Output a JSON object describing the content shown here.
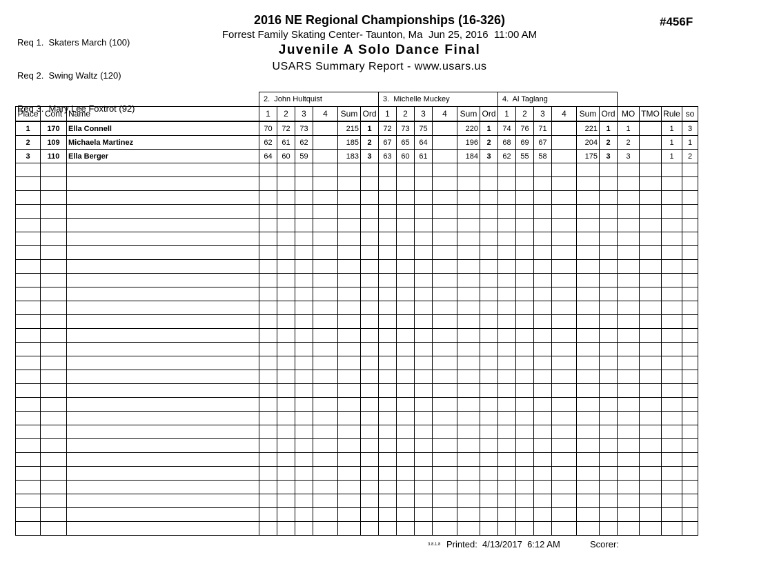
{
  "header": {
    "requirements": [
      "Req 1.  Skaters March (100)",
      "Req 2.  Swing Waltz (120)",
      "Req 3.  Mary Lee Foxtrot (92)"
    ],
    "title": "2016 NE Regional Championships (16-326)",
    "venue_line": "Forrest Family Skating Center- Taunton, Ma  Jun 25, 2016  11:00 AM",
    "event_title": "Juvenile A Solo Dance Final",
    "report_line": "USARS Summary Report - www.usars.us",
    "event_number": "#456F"
  },
  "table": {
    "judges": [
      "2.  John Hultquist",
      "3.  Michelle Muckey",
      "4.  Al Taglang"
    ],
    "left_headers": [
      "Place",
      "Cont",
      "Name"
    ],
    "judge_headers": [
      "1",
      "2",
      "3",
      "4",
      "Sum",
      "Ord"
    ],
    "right_headers": [
      "MO",
      "TMO",
      "Rule",
      "so"
    ],
    "rows": [
      {
        "place": "1",
        "cont": "170",
        "name": "Ella Connell",
        "judges": [
          {
            "marks": [
              "70",
              "72",
              "73",
              ""
            ],
            "sum": "215",
            "ord": "1"
          },
          {
            "marks": [
              "72",
              "73",
              "75",
              ""
            ],
            "sum": "220",
            "ord": "1"
          },
          {
            "marks": [
              "74",
              "76",
              "71",
              ""
            ],
            "sum": "221",
            "ord": "1"
          }
        ],
        "mo": "1",
        "tmo": "",
        "rule": "1",
        "so": "3"
      },
      {
        "place": "2",
        "cont": "109",
        "name": "Michaela Martinez",
        "judges": [
          {
            "marks": [
              "62",
              "61",
              "62",
              ""
            ],
            "sum": "185",
            "ord": "2"
          },
          {
            "marks": [
              "67",
              "65",
              "64",
              ""
            ],
            "sum": "196",
            "ord": "2"
          },
          {
            "marks": [
              "68",
              "69",
              "67",
              ""
            ],
            "sum": "204",
            "ord": "2"
          }
        ],
        "mo": "2",
        "tmo": "",
        "rule": "1",
        "so": "1"
      },
      {
        "place": "3",
        "cont": "110",
        "name": "Ella Berger",
        "judges": [
          {
            "marks": [
              "64",
              "60",
              "59",
              ""
            ],
            "sum": "183",
            "ord": "3"
          },
          {
            "marks": [
              "63",
              "60",
              "61",
              ""
            ],
            "sum": "184",
            "ord": "3"
          },
          {
            "marks": [
              "62",
              "55",
              "58",
              ""
            ],
            "sum": "175",
            "ord": "3"
          }
        ],
        "mo": "3",
        "tmo": "",
        "rule": "1",
        "so": "2"
      }
    ],
    "empty_row_count": 27
  },
  "footer": {
    "version": "3.8.1.8",
    "printed_label": "Printed:  4/13/2017  6:12 AM",
    "scorer_label": "Scorer:"
  }
}
